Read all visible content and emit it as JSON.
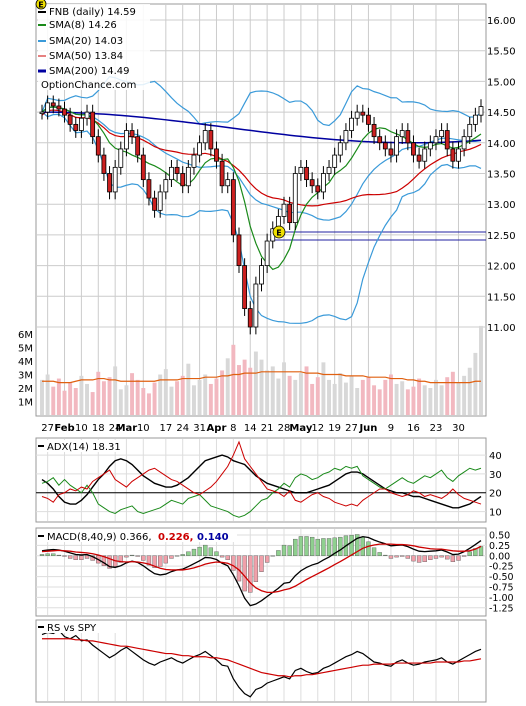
{
  "chart_data": [
    {
      "type": "candlestick",
      "legend": [
        {
          "label": "FNB (daily) 14.59",
          "color": "#000000"
        },
        {
          "label": "SMA(8) 14.26",
          "color": "#1a8a1a"
        },
        {
          "label": "SMA(20) 14.03",
          "color": "#3a9ad9"
        },
        {
          "label": "SMA(50) 13.84",
          "color": "#cc0000"
        },
        {
          "label": "SMA(200) 14.49",
          "color": "#0000a0"
        }
      ],
      "watermark": "OptionChance.com",
      "earnings_markers": [
        "E",
        "E"
      ],
      "ylim": [
        10.5,
        16.3
      ],
      "y_ticks": [
        "16.00",
        "15.50",
        "15.00",
        "14.50",
        "14.00",
        "13.50",
        "13.00",
        "12.50",
        "12.00",
        "11.50",
        "11.00"
      ],
      "volume_ticks": [
        "6M",
        "5M",
        "4M",
        "3M",
        "2M",
        "1M"
      ],
      "x_ticks": [
        "27",
        "Feb",
        "10",
        "18",
        "24",
        "Mar",
        "10",
        "17",
        "24",
        "31",
        "Apr",
        "8",
        "14",
        "21",
        "28",
        "May",
        "12",
        "19",
        "27",
        "Jun",
        "9",
        "16",
        "23",
        "30"
      ],
      "close": [
        14.5,
        14.65,
        14.6,
        14.55,
        14.45,
        14.3,
        14.2,
        14.4,
        14.5,
        14.1,
        13.8,
        13.5,
        13.2,
        13.6,
        13.9,
        14.2,
        14.1,
        13.8,
        13.4,
        13.1,
        12.9,
        13.2,
        13.4,
        13.6,
        13.5,
        13.3,
        13.6,
        13.8,
        14.0,
        14.2,
        13.9,
        13.7,
        13.3,
        13.4,
        12.5,
        12.0,
        11.3,
        11.0,
        11.7,
        12.0,
        12.4,
        12.6,
        12.8,
        13.0,
        12.7,
        13.5,
        13.6,
        13.4,
        13.3,
        13.2,
        13.5,
        13.6,
        13.8,
        14.0,
        14.2,
        14.4,
        14.5,
        14.45,
        14.3,
        14.1,
        14.0,
        13.9,
        13.8,
        14.1,
        14.2,
        14.0,
        13.8,
        13.7,
        13.9,
        14.0,
        14.1,
        14.2,
        13.9,
        13.7,
        13.9,
        14.1,
        14.3,
        14.45,
        14.59
      ],
      "volume": [
        2.6,
        3.0,
        2.1,
        2.7,
        1.8,
        2.4,
        2.0,
        2.9,
        2.3,
        1.7,
        3.2,
        2.5,
        2.8,
        3.6,
        1.9,
        2.2,
        3.1,
        2.6,
        2.0,
        1.6,
        2.4,
        3.0,
        3.4,
        2.1,
        2.5,
        2.9,
        3.8,
        2.2,
        2.6,
        3.0,
        2.3,
        2.7,
        3.3,
        4.2,
        5.2,
        3.7,
        4.1,
        3.5,
        4.7,
        4.1,
        3.3,
        3.6,
        2.7,
        3.9,
        2.9,
        2.6,
        3.1,
        3.6,
        2.3,
        2.8,
        3.9,
        2.6,
        2.3,
        3.1,
        2.4,
        2.9,
        2.0,
        2.6,
        2.8,
        2.2,
        1.9,
        2.6,
        3.0,
        2.3,
        2.5,
        1.9,
        2.1,
        2.7,
        2.2,
        2.0,
        2.6,
        2.2,
        2.8,
        3.2,
        2.4,
        2.9,
        3.5,
        4.6,
        6.6
      ],
      "volume_avg": [
        2.5,
        2.5,
        2.5,
        2.4,
        2.4,
        2.4,
        2.5,
        2.6,
        2.6,
        2.6,
        2.7,
        2.7,
        2.6,
        2.6,
        2.5,
        2.5,
        2.5,
        2.5,
        2.5,
        2.5,
        2.5,
        2.6,
        2.6,
        2.6,
        2.6,
        2.7,
        2.7,
        2.7,
        2.7,
        2.8,
        2.8,
        2.8,
        2.9,
        2.9,
        3.0,
        3.0,
        3.1,
        3.1,
        3.1,
        3.2,
        3.2,
        3.2,
        3.2,
        3.2,
        3.2,
        3.2,
        3.2,
        3.1,
        3.1,
        3.1,
        3.0,
        3.0,
        3.0,
        3.0,
        2.9,
        2.9,
        2.9,
        2.9,
        2.8,
        2.8,
        2.8,
        2.8,
        2.7,
        2.7,
        2.7,
        2.6,
        2.6,
        2.5,
        2.5,
        2.4,
        2.4,
        2.4,
        2.4,
        2.4,
        2.4,
        2.4,
        2.4,
        2.5,
        2.5
      ]
    },
    {
      "type": "line",
      "label": "ADX(14) 18.31",
      "y_ticks": [
        "40",
        "30",
        "20",
        "10"
      ],
      "ylim": [
        5,
        48
      ],
      "series": [
        {
          "name": "ADX",
          "color": "#000000",
          "values": [
            27,
            25,
            22,
            18,
            15,
            14,
            14,
            16,
            19,
            23,
            27,
            30,
            34,
            37,
            38,
            37,
            35,
            32,
            29,
            27,
            25,
            24,
            23,
            23,
            24,
            26,
            28,
            31,
            34,
            37,
            38,
            39,
            40,
            39,
            37,
            36,
            35,
            32,
            29,
            27,
            25,
            24,
            23,
            22,
            21,
            20,
            20,
            20,
            21,
            22,
            23,
            24,
            26,
            28,
            30,
            31,
            31,
            30,
            28,
            26,
            24,
            22,
            21,
            20,
            20,
            19,
            18,
            18,
            17,
            16,
            15,
            14,
            13,
            12,
            12,
            13,
            14,
            16,
            18
          ]
        },
        {
          "name": "+DI",
          "color": "#1a8a1a",
          "values": [
            25,
            26,
            28,
            24,
            27,
            24,
            22,
            20,
            24,
            20,
            14,
            12,
            10,
            9,
            11,
            12,
            13,
            10,
            9,
            10,
            11,
            12,
            14,
            16,
            15,
            14,
            17,
            18,
            19,
            16,
            13,
            12,
            11,
            10,
            8,
            7,
            8,
            10,
            13,
            16,
            17,
            20,
            22,
            25,
            23,
            28,
            30,
            29,
            27,
            28,
            30,
            31,
            33,
            32,
            34,
            33,
            34,
            29,
            27,
            25,
            23,
            22,
            24,
            26,
            28,
            26,
            25,
            27,
            29,
            28,
            30,
            32,
            28,
            26,
            29,
            31,
            33,
            32,
            33
          ]
        },
        {
          "name": "-DI",
          "color": "#cc0000",
          "values": [
            18,
            17,
            15,
            19,
            20,
            22,
            21,
            23,
            22,
            26,
            28,
            30,
            32,
            27,
            25,
            23,
            26,
            28,
            30,
            32,
            33,
            31,
            29,
            27,
            26,
            24,
            22,
            20,
            19,
            21,
            23,
            26,
            30,
            34,
            40,
            47,
            38,
            34,
            30,
            26,
            22,
            21,
            20,
            18,
            21,
            16,
            15,
            17,
            19,
            20,
            18,
            17,
            15,
            14,
            13,
            14,
            13,
            16,
            18,
            20,
            22,
            22,
            20,
            19,
            18,
            19,
            21,
            20,
            18,
            19,
            18,
            17,
            19,
            22,
            19,
            17,
            16,
            15,
            14
          ]
        }
      ],
      "reference_line": 20
    },
    {
      "type": "bar",
      "label": "MACD(8,40,9) 0.366,",
      "values_printed": [
        "0.226,",
        "0.140"
      ],
      "value_colors": [
        "#cc0000",
        "#0000a0"
      ],
      "y_ticks": [
        "0.50",
        "0.25",
        "0.00",
        "-0.25",
        "-0.50",
        "-0.75",
        "-1.00",
        "-1.25"
      ],
      "ylim": [
        -1.4,
        0.62
      ],
      "series": [
        {
          "name": "MACD",
          "color": "#000000",
          "values": [
            0.12,
            0.14,
            0.15,
            0.14,
            0.11,
            0.07,
            0.03,
            0.02,
            0.03,
            -0.02,
            -0.09,
            -0.17,
            -0.26,
            -0.28,
            -0.24,
            -0.17,
            -0.13,
            -0.16,
            -0.24,
            -0.34,
            -0.43,
            -0.46,
            -0.44,
            -0.38,
            -0.34,
            -0.32,
            -0.26,
            -0.19,
            -0.12,
            -0.04,
            -0.05,
            -0.09,
            -0.18,
            -0.24,
            -0.46,
            -0.72,
            -1.02,
            -1.2,
            -1.16,
            -1.08,
            -0.98,
            -0.88,
            -0.78,
            -0.66,
            -0.64,
            -0.48,
            -0.36,
            -0.28,
            -0.22,
            -0.18,
            -0.1,
            -0.03,
            0.06,
            0.14,
            0.24,
            0.33,
            0.42,
            0.46,
            0.44,
            0.38,
            0.33,
            0.29,
            0.24,
            0.25,
            0.26,
            0.22,
            0.16,
            0.11,
            0.1,
            0.11,
            0.12,
            0.14,
            0.09,
            0.03,
            0.04,
            0.1,
            0.18,
            0.27,
            0.366
          ]
        },
        {
          "name": "Signal",
          "color": "#cc0000",
          "values": [
            0.1,
            0.11,
            0.12,
            0.13,
            0.12,
            0.11,
            0.09,
            0.08,
            0.07,
            0.05,
            0.02,
            -0.02,
            -0.07,
            -0.12,
            -0.14,
            -0.15,
            -0.14,
            -0.15,
            -0.17,
            -0.2,
            -0.25,
            -0.3,
            -0.33,
            -0.34,
            -0.34,
            -0.34,
            -0.32,
            -0.29,
            -0.25,
            -0.2,
            -0.17,
            -0.15,
            -0.16,
            -0.18,
            -0.24,
            -0.34,
            -0.49,
            -0.65,
            -0.77,
            -0.84,
            -0.88,
            -0.88,
            -0.86,
            -0.82,
            -0.79,
            -0.73,
            -0.65,
            -0.57,
            -0.5,
            -0.43,
            -0.36,
            -0.29,
            -0.21,
            -0.14,
            -0.06,
            0.02,
            0.1,
            0.18,
            0.23,
            0.26,
            0.28,
            0.28,
            0.28,
            0.27,
            0.27,
            0.26,
            0.24,
            0.21,
            0.19,
            0.17,
            0.16,
            0.16,
            0.14,
            0.12,
            0.11,
            0.11,
            0.12,
            0.16,
            0.226
          ]
        }
      ]
    },
    {
      "type": "line",
      "label": "RS vs SPY",
      "series": [
        {
          "name": "RS",
          "color": "#000000",
          "values": [
            0.62,
            0.64,
            0.63,
            0.66,
            0.6,
            0.58,
            0.61,
            0.56,
            0.57,
            0.52,
            0.48,
            0.44,
            0.4,
            0.43,
            0.47,
            0.5,
            0.46,
            0.42,
            0.38,
            0.35,
            0.33,
            0.36,
            0.38,
            0.4,
            0.37,
            0.35,
            0.38,
            0.41,
            0.43,
            0.46,
            0.42,
            0.38,
            0.33,
            0.32,
            0.2,
            0.12,
            0.06,
            0.03,
            0.1,
            0.12,
            0.16,
            0.18,
            0.2,
            0.22,
            0.2,
            0.28,
            0.3,
            0.27,
            0.25,
            0.26,
            0.3,
            0.32,
            0.35,
            0.38,
            0.41,
            0.43,
            0.46,
            0.44,
            0.4,
            0.36,
            0.35,
            0.33,
            0.32,
            0.36,
            0.38,
            0.35,
            0.33,
            0.34,
            0.36,
            0.37,
            0.38,
            0.4,
            0.36,
            0.34,
            0.37,
            0.4,
            0.43,
            0.46,
            0.48
          ]
        },
        {
          "name": "RS average",
          "color": "#cc0000",
          "values": [
            0.58,
            0.58,
            0.58,
            0.58,
            0.58,
            0.58,
            0.57,
            0.57,
            0.56,
            0.56,
            0.55,
            0.54,
            0.53,
            0.52,
            0.51,
            0.51,
            0.5,
            0.49,
            0.48,
            0.47,
            0.46,
            0.45,
            0.44,
            0.44,
            0.43,
            0.42,
            0.42,
            0.41,
            0.41,
            0.41,
            0.4,
            0.4,
            0.39,
            0.38,
            0.36,
            0.34,
            0.32,
            0.3,
            0.28,
            0.26,
            0.25,
            0.24,
            0.23,
            0.23,
            0.22,
            0.23,
            0.23,
            0.24,
            0.24,
            0.25,
            0.26,
            0.27,
            0.28,
            0.29,
            0.3,
            0.31,
            0.32,
            0.33,
            0.33,
            0.34,
            0.34,
            0.34,
            0.34,
            0.35,
            0.35,
            0.35,
            0.35,
            0.35,
            0.35,
            0.35,
            0.36,
            0.36,
            0.36,
            0.36,
            0.36,
            0.37,
            0.37,
            0.38,
            0.39
          ]
        }
      ]
    }
  ]
}
